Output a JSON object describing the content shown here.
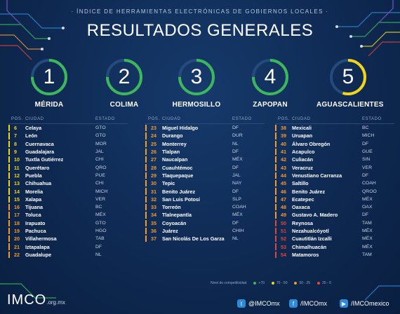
{
  "header": {
    "subtitle": "· ÍNDICE DE HERRAMIENTAS ELECTRÓNICAS DE GOBIERNOS LOCALES ·",
    "title": "RESULTADOS GENERALES"
  },
  "top5": [
    {
      "rank": "1",
      "city": "MÉRIDA",
      "color": "#3cb85a",
      "fill": 0.75
    },
    {
      "rank": "2",
      "city": "COLIMA",
      "color": "#3cb85a",
      "fill": 0.75
    },
    {
      "rank": "3",
      "city": "HERMOSILLO",
      "color": "#3cb85a",
      "fill": 0.75
    },
    {
      "rank": "4",
      "city": "ZAPOPAN",
      "color": "#3cb85a",
      "fill": 0.75
    },
    {
      "rank": "5",
      "city": "AGUASCALIENTES",
      "color": "#f2d41a",
      "fill": 0.55
    }
  ],
  "table_headers": {
    "pos": "POS.",
    "city": "CIUDAD",
    "state": "ESTADO"
  },
  "colors": {
    "green": "#3cb85a",
    "yellow": "#f2d41a",
    "orange": "#f39a2b",
    "red": "#e0463a"
  },
  "columns": [
    [
      {
        "pos": "6",
        "city": "Celaya",
        "state": "GTO",
        "tier": "yellow"
      },
      {
        "pos": "7",
        "city": "León",
        "state": "GTO",
        "tier": "yellow"
      },
      {
        "pos": "8",
        "city": "Cuernavaca",
        "state": "MOR",
        "tier": "yellow"
      },
      {
        "pos": "9",
        "city": "Guadalajara",
        "state": "JAL",
        "tier": "yellow"
      },
      {
        "pos": "10",
        "city": "Tuxtla Gutiérrez",
        "state": "CHI",
        "tier": "yellow"
      },
      {
        "pos": "11",
        "city": "Querétaro",
        "state": "QRO",
        "tier": "yellow"
      },
      {
        "pos": "12",
        "city": "Puebla",
        "state": "PUE",
        "tier": "yellow"
      },
      {
        "pos": "13",
        "city": "Chihuahua",
        "state": "CHI",
        "tier": "yellow"
      },
      {
        "pos": "14",
        "city": "Morelia",
        "state": "MICH",
        "tier": "yellow"
      },
      {
        "pos": "15",
        "city": "Xalapa",
        "state": "VER",
        "tier": "yellow"
      },
      {
        "pos": "16",
        "city": "Tijuana",
        "state": "BC",
        "tier": "orange"
      },
      {
        "pos": "17",
        "city": "Toluca",
        "state": "MÉX",
        "tier": "orange"
      },
      {
        "pos": "18",
        "city": "Irapuato",
        "state": "GTO",
        "tier": "orange"
      },
      {
        "pos": "19",
        "city": "Pachuca",
        "state": "HGO",
        "tier": "orange"
      },
      {
        "pos": "20",
        "city": "Villahermosa",
        "state": "TAB",
        "tier": "orange"
      },
      {
        "pos": "21",
        "city": "Iztapalapa",
        "state": "DF",
        "tier": "orange"
      },
      {
        "pos": "22",
        "city": "Guadalupe",
        "state": "NL",
        "tier": "orange"
      }
    ],
    [
      {
        "pos": "23",
        "city": "Miguel Hidalgo",
        "state": "DF",
        "tier": "orange"
      },
      {
        "pos": "24",
        "city": "Durango",
        "state": "DUR",
        "tier": "orange"
      },
      {
        "pos": "25",
        "city": "Monterrey",
        "state": "NL",
        "tier": "orange"
      },
      {
        "pos": "26",
        "city": "Tlalpan",
        "state": "DF",
        "tier": "orange"
      },
      {
        "pos": "27",
        "city": "Naucalpan",
        "state": "MÉX",
        "tier": "orange"
      },
      {
        "pos": "28",
        "city": "Cuauhtémoc",
        "state": "DF",
        "tier": "orange"
      },
      {
        "pos": "29",
        "city": "Tlaquepaque",
        "state": "JAL",
        "tier": "orange"
      },
      {
        "pos": "30",
        "city": "Tepic",
        "state": "NAY",
        "tier": "orange"
      },
      {
        "pos": "31",
        "city": "Benito Juárez",
        "state": "DF",
        "tier": "orange"
      },
      {
        "pos": "32",
        "city": "San Luis Potosí",
        "state": "SLP",
        "tier": "orange"
      },
      {
        "pos": "33",
        "city": "Torreón",
        "state": "COAH",
        "tier": "orange"
      },
      {
        "pos": "34",
        "city": "Tlalnepantla",
        "state": "MÉX",
        "tier": "orange"
      },
      {
        "pos": "35",
        "city": "Coyoacán",
        "state": "DF",
        "tier": "orange"
      },
      {
        "pos": "36",
        "city": "Juárez",
        "state": "CHIH",
        "tier": "orange"
      },
      {
        "pos": "37",
        "city": "San Nicolás De Los Garza",
        "state": "NL",
        "tier": "orange"
      }
    ],
    [
      {
        "pos": "38",
        "city": "Mexicali",
        "state": "BC",
        "tier": "orange"
      },
      {
        "pos": "39",
        "city": "Uruapan",
        "state": "MICH",
        "tier": "orange"
      },
      {
        "pos": "40",
        "city": "Álvaro Obregón",
        "state": "DF",
        "tier": "orange"
      },
      {
        "pos": "41",
        "city": "Acapulco",
        "state": "GUE",
        "tier": "orange"
      },
      {
        "pos": "42",
        "city": "Culiacán",
        "state": "SIN",
        "tier": "orange"
      },
      {
        "pos": "43",
        "city": "Veracruz",
        "state": "VER",
        "tier": "orange"
      },
      {
        "pos": "44",
        "city": "Venustiano Carranza",
        "state": "DF",
        "tier": "orange"
      },
      {
        "pos": "45",
        "city": "Saltillo",
        "state": "COAH",
        "tier": "orange"
      },
      {
        "pos": "46",
        "city": "Benito Juárez",
        "state": "QROO",
        "tier": "orange"
      },
      {
        "pos": "47",
        "city": "Ecatepec",
        "state": "MÉX",
        "tier": "orange"
      },
      {
        "pos": "48",
        "city": "Oaxaca",
        "state": "OAX",
        "tier": "orange"
      },
      {
        "pos": "49",
        "city": "Gustavo A. Madero",
        "state": "DF",
        "tier": "orange"
      },
      {
        "pos": "50",
        "city": "Reynosa",
        "state": "TAM",
        "tier": "red"
      },
      {
        "pos": "51",
        "city": "Nezahualcóyotl",
        "state": "MÉX",
        "tier": "red"
      },
      {
        "pos": "52",
        "city": "Cuautitlán Izcalli",
        "state": "MÉX",
        "tier": "red"
      },
      {
        "pos": "53",
        "city": "Chimalhuacán",
        "state": "MÉX",
        "tier": "red"
      },
      {
        "pos": "54",
        "city": "Matamoros",
        "state": "TAM",
        "tier": "red"
      }
    ]
  ],
  "legend": {
    "label": "Nivel de competitividad",
    "items": [
      {
        "label": "+70",
        "tier": "green"
      },
      {
        "label": "70 - 50",
        "tier": "yellow"
      },
      {
        "label": "50 - 25",
        "tier": "orange"
      },
      {
        "label": "25 - 0",
        "tier": "red"
      }
    ]
  },
  "footer": {
    "logo": "IMCO",
    "logo_domain": ".org.mx",
    "twitter": "@IMCOmx",
    "facebook": "/IMCOmx",
    "youtube": "/IMCOmexico"
  }
}
